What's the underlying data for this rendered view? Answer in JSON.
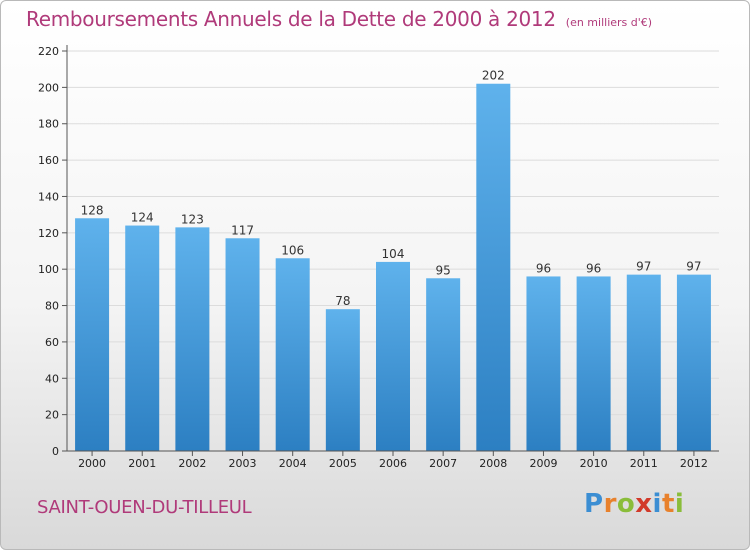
{
  "chart_data": {
    "type": "bar",
    "title": "Remboursements Annuels de la Dette de 2000 à 2012",
    "subtitle": "(en milliers d'€)",
    "categories": [
      "2000",
      "2001",
      "2002",
      "2003",
      "2004",
      "2005",
      "2006",
      "2007",
      "2008",
      "2009",
      "2010",
      "2011",
      "2012"
    ],
    "values": [
      128,
      124,
      123,
      117,
      106,
      78,
      104,
      95,
      202,
      96,
      96,
      97,
      97
    ],
    "ylim": [
      0,
      220
    ],
    "yticks": [
      0,
      20,
      40,
      60,
      80,
      100,
      120,
      140,
      160,
      180,
      200,
      220
    ],
    "grid": true,
    "bar_color": "#3a93d8",
    "title_color": "#b03a7a"
  },
  "footer": {
    "commune": "SAINT-OUEN-DU-TILLEUL",
    "brand_letters": [
      {
        "ch": "P",
        "color": "#3b8ed3"
      },
      {
        "ch": "r",
        "color": "#e8812c"
      },
      {
        "ch": "o",
        "color": "#8abd3a"
      },
      {
        "ch": "x",
        "color": "#d23a2a"
      },
      {
        "ch": "i",
        "color": "#3b8ed3"
      },
      {
        "ch": "t",
        "color": "#e8812c"
      },
      {
        "ch": "i",
        "color": "#8abd3a"
      }
    ]
  }
}
